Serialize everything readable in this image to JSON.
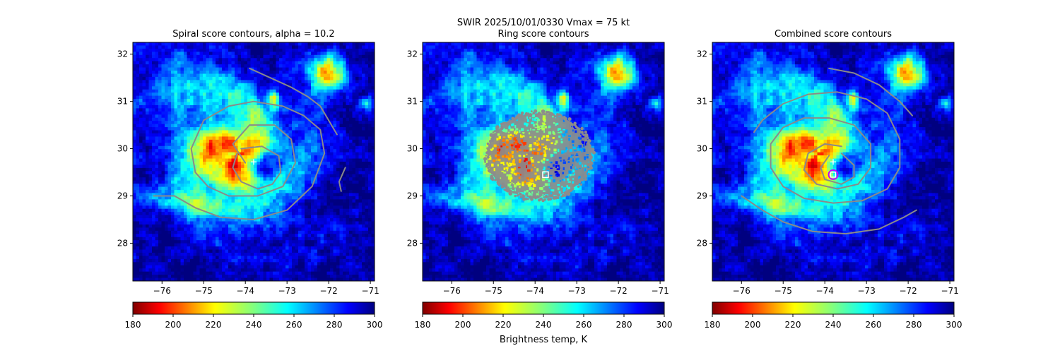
{
  "figure": {
    "suptitle_line1": "SWIR  2025/10/01/0330    Vmax = 75 kt",
    "colorbar_label": "Brightness temp, K"
  },
  "chart_data": [
    {
      "type": "heatmap",
      "title": "Spiral score contours, alpha = 10.2",
      "xlim": [
        -76.7,
        -70.9
      ],
      "ylim": [
        27.2,
        32.25
      ],
      "xticks": [
        -76,
        -75,
        -74,
        -73,
        -72,
        -71
      ],
      "yticks": [
        28,
        29,
        30,
        31,
        32
      ],
      "colorbar": {
        "min": 180,
        "max": 300,
        "ticks": [
          180,
          200,
          220,
          240,
          260,
          280,
          300
        ],
        "cmap": "jet_r"
      },
      "center_marker": {
        "lon": -73.8,
        "lat": 29.72,
        "symbol": "plus"
      },
      "contours": [
        [
          [
            -73.9,
            31.7
          ],
          [
            -73.4,
            31.5
          ],
          [
            -72.9,
            31.3
          ],
          [
            -72.5,
            31.1
          ],
          [
            -72.2,
            30.9
          ],
          [
            -71.8,
            30.3
          ]
        ],
        [
          [
            -76.2,
            29.0
          ],
          [
            -75.7,
            29.0
          ],
          [
            -75.2,
            28.75
          ],
          [
            -74.6,
            28.55
          ],
          [
            -73.8,
            28.5
          ],
          [
            -73.0,
            28.7
          ],
          [
            -72.4,
            29.2
          ],
          [
            -72.1,
            29.9
          ],
          [
            -72.2,
            30.4
          ],
          [
            -72.6,
            30.7
          ],
          [
            -73.1,
            30.9
          ],
          [
            -73.8,
            31.0
          ],
          [
            -74.4,
            30.9
          ],
          [
            -75.0,
            30.6
          ],
          [
            -75.3,
            30.0
          ],
          [
            -75.2,
            29.5
          ],
          [
            -74.9,
            29.2
          ],
          [
            -74.4,
            29.0
          ],
          [
            -73.7,
            29.0
          ],
          [
            -73.1,
            29.2
          ],
          [
            -72.8,
            29.7
          ],
          [
            -72.9,
            30.2
          ],
          [
            -73.3,
            30.5
          ],
          [
            -73.9,
            30.5
          ],
          [
            -74.3,
            30.1
          ],
          [
            -74.0,
            29.7
          ]
        ],
        [
          [
            -74.1,
            30.0
          ],
          [
            -73.6,
            30.05
          ],
          [
            -73.2,
            29.85
          ],
          [
            -73.15,
            29.5
          ],
          [
            -73.35,
            29.25
          ],
          [
            -73.7,
            29.15
          ],
          [
            -74.1,
            29.3
          ],
          [
            -74.3,
            29.6
          ],
          [
            -74.2,
            29.9
          ]
        ],
        [
          [
            -71.6,
            29.6
          ],
          [
            -71.75,
            29.3
          ],
          [
            -71.7,
            29.1
          ]
        ]
      ]
    },
    {
      "type": "heatmap",
      "title": "Ring score contours",
      "xlim": [
        -76.7,
        -70.9
      ],
      "ylim": [
        27.2,
        32.25
      ],
      "xticks": [
        -76,
        -75,
        -74,
        -73,
        -72,
        -71
      ],
      "yticks": [
        28,
        29,
        30,
        31,
        32
      ],
      "colorbar": {
        "min": 180,
        "max": 300,
        "ticks": [
          180,
          200,
          220,
          240,
          260,
          280,
          300
        ],
        "cmap": "jet_r"
      },
      "center_marker": {
        "lon": -73.75,
        "lat": 29.45,
        "symbol": "square"
      },
      "ring_region": {
        "lon": -73.9,
        "lat": 29.85,
        "rlon": 1.25,
        "rlat": 0.9
      }
    },
    {
      "type": "heatmap",
      "title": "Combined score contours",
      "xlim": [
        -76.7,
        -70.9
      ],
      "ylim": [
        27.2,
        32.25
      ],
      "xticks": [
        -76,
        -75,
        -74,
        -73,
        -72,
        -71
      ],
      "yticks": [
        28,
        29,
        30,
        31,
        32
      ],
      "colorbar": {
        "min": 180,
        "max": 300,
        "ticks": [
          180,
          200,
          220,
          240,
          260,
          280,
          300
        ],
        "cmap": "jet_r"
      },
      "center_marker": {
        "lon": -73.8,
        "lat": 29.45,
        "symbol": "square-circle"
      },
      "plus_marker": {
        "lon": -73.8,
        "lat": 29.72
      },
      "contours": [
        [
          [
            -73.9,
            31.7
          ],
          [
            -73.3,
            31.6
          ],
          [
            -72.7,
            31.35
          ],
          [
            -72.2,
            31.0
          ],
          [
            -71.9,
            30.7
          ]
        ],
        [
          [
            -76.0,
            29.0
          ],
          [
            -75.5,
            28.7
          ],
          [
            -75.0,
            28.45
          ],
          [
            -74.3,
            28.25
          ],
          [
            -73.5,
            28.2
          ],
          [
            -72.7,
            28.3
          ],
          [
            -72.1,
            28.55
          ],
          [
            -71.8,
            28.7
          ]
        ],
        [
          [
            -75.7,
            30.35
          ],
          [
            -75.5,
            30.6
          ],
          [
            -75.0,
            30.95
          ],
          [
            -74.4,
            31.15
          ],
          [
            -73.7,
            31.2
          ],
          [
            -73.0,
            31.05
          ],
          [
            -72.5,
            30.75
          ],
          [
            -72.2,
            30.2
          ],
          [
            -72.2,
            29.6
          ],
          [
            -72.5,
            29.15
          ],
          [
            -73.1,
            28.9
          ],
          [
            -73.8,
            28.85
          ],
          [
            -74.5,
            28.95
          ],
          [
            -75.0,
            29.2
          ],
          [
            -75.3,
            29.6
          ],
          [
            -75.3,
            30.1
          ],
          [
            -75.0,
            30.45
          ],
          [
            -74.5,
            30.65
          ],
          [
            -73.9,
            30.65
          ],
          [
            -73.3,
            30.5
          ],
          [
            -72.9,
            30.1
          ],
          [
            -72.9,
            29.6
          ],
          [
            -73.2,
            29.25
          ],
          [
            -73.7,
            29.15
          ],
          [
            -74.2,
            29.25
          ],
          [
            -74.5,
            29.55
          ],
          [
            -74.4,
            29.9
          ],
          [
            -74.0,
            30.1
          ],
          [
            -73.6,
            30.05
          ]
        ],
        [
          [
            -73.6,
            29.9
          ],
          [
            -73.3,
            29.65
          ],
          [
            -73.3,
            29.4
          ],
          [
            -73.6,
            29.25
          ],
          [
            -74.0,
            29.35
          ],
          [
            -74.1,
            29.6
          ],
          [
            -73.9,
            29.85
          ]
        ]
      ]
    }
  ]
}
